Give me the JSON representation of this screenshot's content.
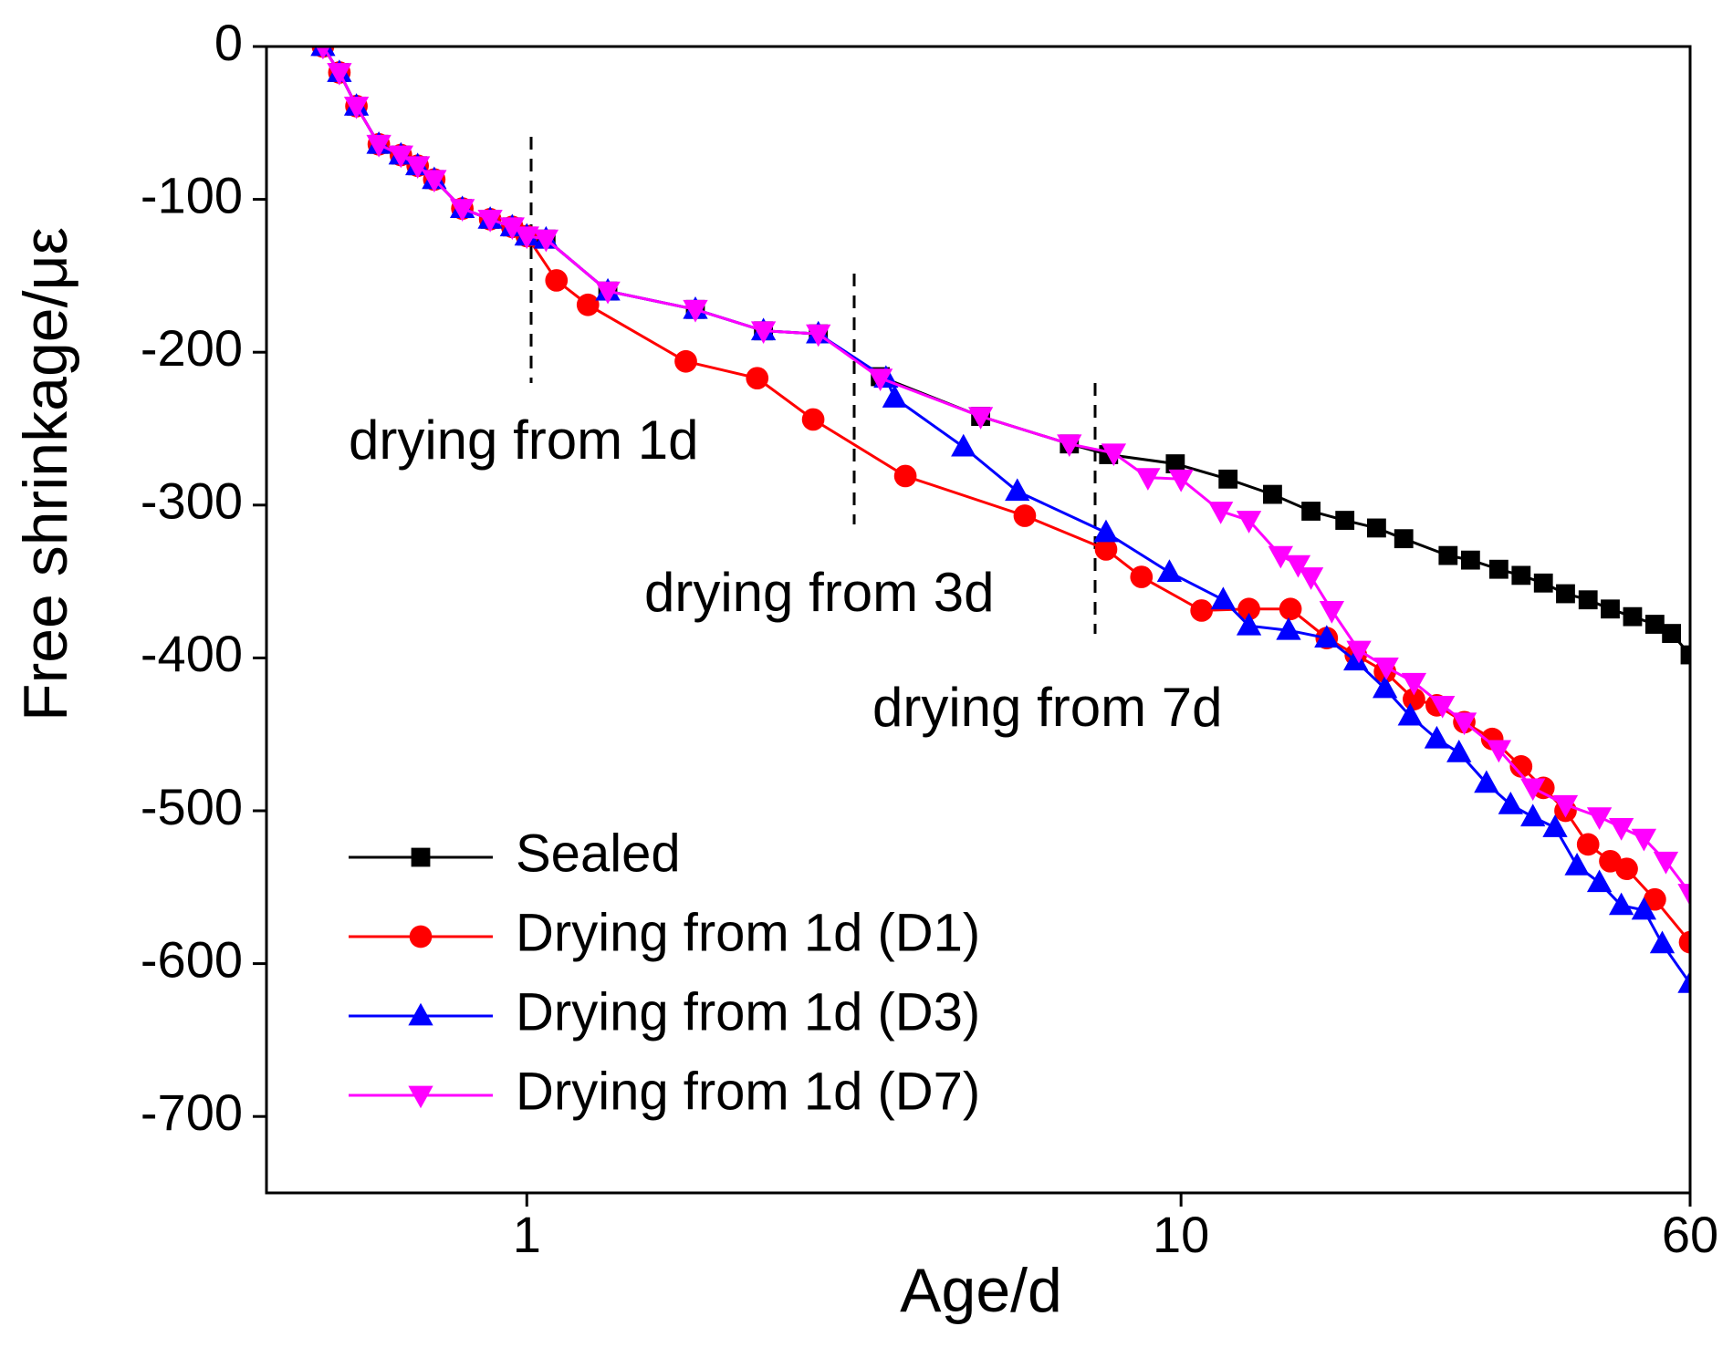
{
  "chart_data": {
    "type": "line",
    "xlabel": "Age/d",
    "ylabel": "Free shrinkage/με",
    "xscale": "log",
    "xlim": [
      0.4,
      60
    ],
    "xticks": [
      1,
      10,
      60
    ],
    "ylim": [
      -750,
      0
    ],
    "yticks": [
      0,
      -100,
      -200,
      -300,
      -400,
      -500,
      -600,
      -700
    ],
    "annotations": [
      "drying from 1d",
      "drying from 3d",
      "drying from 7d"
    ],
    "legend": "lower left",
    "series": [
      {
        "name": "Sealed",
        "color": "#000000",
        "marker": "square",
        "x": [
          0.488,
          0.517,
          0.549,
          0.594,
          0.642,
          0.681,
          0.722,
          0.797,
          0.879,
          0.95,
          1.0,
          1.07,
          1.33,
          1.81,
          2.3,
          2.79,
          3.47,
          4.94,
          6.75,
          7.75,
          9.8,
          11.8,
          13.8,
          15.8,
          17.8,
          19.9,
          21.9,
          25.6,
          27.7,
          30.6,
          33.1,
          35.8,
          38.7,
          41.9,
          45.3,
          49.0,
          53.0,
          56.2,
          60
        ],
        "values": [
          0,
          -17,
          -39,
          -64,
          -71,
          -78,
          -87,
          -106,
          -113,
          -118,
          -124,
          -126,
          -160,
          -172,
          -186,
          -188,
          -216,
          -242,
          -260,
          -267,
          -273,
          -283,
          -293,
          -304,
          -310,
          -315,
          -322,
          -333,
          -336,
          -342,
          -346,
          -351,
          -358,
          -362,
          -368,
          -373,
          -378,
          -384,
          -398
        ]
      },
      {
        "name": "Drying from 1d (D1)",
        "color": "#ff0000",
        "marker": "circle",
        "x": [
          0.488,
          0.517,
          0.549,
          0.594,
          0.642,
          0.681,
          0.722,
          0.797,
          0.879,
          0.95,
          1.0,
          1.11,
          1.24,
          1.75,
          2.25,
          2.74,
          3.79,
          5.77,
          7.68,
          8.7,
          10.75,
          12.7,
          14.7,
          16.7,
          18.5,
          20.5,
          22.7,
          24.6,
          27.1,
          29.9,
          33.1,
          35.8,
          38.7,
          41.9,
          45.3,
          48.0,
          53.0,
          60
        ],
        "values": [
          0,
          -17,
          -39,
          -64,
          -71,
          -78,
          -87,
          -106,
          -113,
          -118,
          -124,
          -153,
          -169,
          -206,
          -217,
          -244,
          -281,
          -307,
          -329,
          -347,
          -369,
          -368,
          -368,
          -387,
          -398,
          -409,
          -427,
          -431,
          -442,
          -453,
          -471,
          -485,
          -500,
          -522,
          -533,
          -538,
          -558,
          -586
        ]
      },
      {
        "name": "Drying from 1d (D3)",
        "color": "#0000ff",
        "marker": "triangle-up",
        "x": [
          0.488,
          0.517,
          0.549,
          0.594,
          0.642,
          0.681,
          0.722,
          0.797,
          0.879,
          0.95,
          1.0,
          1.07,
          1.33,
          1.81,
          2.3,
          2.79,
          3.54,
          3.65,
          4.65,
          5.62,
          7.68,
          9.6,
          11.6,
          12.7,
          14.6,
          16.7,
          18.5,
          20.5,
          22.4,
          24.6,
          26.6,
          29.3,
          31.9,
          34.5,
          37.3,
          40.3,
          43.6,
          47.1,
          51.0,
          54.4,
          60
        ],
        "values": [
          0,
          -17,
          -39,
          -64,
          -71,
          -78,
          -87,
          -106,
          -113,
          -118,
          -124,
          -126,
          -160,
          -172,
          -186,
          -188,
          -217,
          -230,
          -262,
          -291,
          -318,
          -344,
          -362,
          -379,
          -382,
          -387,
          -402,
          -420,
          -438,
          -453,
          -462,
          -482,
          -496,
          -504,
          -511,
          -536,
          -547,
          -562,
          -565,
          -587,
          -613
        ]
      },
      {
        "name": "Drying from 1d (D7)",
        "color": "#ff00ff",
        "marker": "triangle-down",
        "x": [
          0.488,
          0.517,
          0.549,
          0.594,
          0.642,
          0.681,
          0.722,
          0.797,
          0.879,
          0.95,
          1.0,
          1.07,
          1.33,
          1.81,
          2.3,
          2.79,
          3.47,
          4.94,
          6.75,
          7.89,
          8.9,
          10.0,
          11.5,
          12.7,
          14.2,
          15.1,
          15.8,
          17.0,
          18.7,
          20.6,
          22.7,
          25.1,
          27.1,
          30.6,
          34.5,
          38.7,
          43.6,
          47.1,
          51.0,
          55.1,
          60
        ],
        "values": [
          0,
          -17,
          -39,
          -64,
          -71,
          -78,
          -87,
          -106,
          -113,
          -118,
          -124,
          -126,
          -160,
          -172,
          -186,
          -188,
          -217,
          -242,
          -260,
          -266,
          -282,
          -283,
          -304,
          -310,
          -333,
          -339,
          -347,
          -369,
          -395,
          -406,
          -416,
          -431,
          -442,
          -460,
          -485,
          -496,
          -504,
          -511,
          -518,
          -533,
          -554
        ]
      }
    ]
  }
}
